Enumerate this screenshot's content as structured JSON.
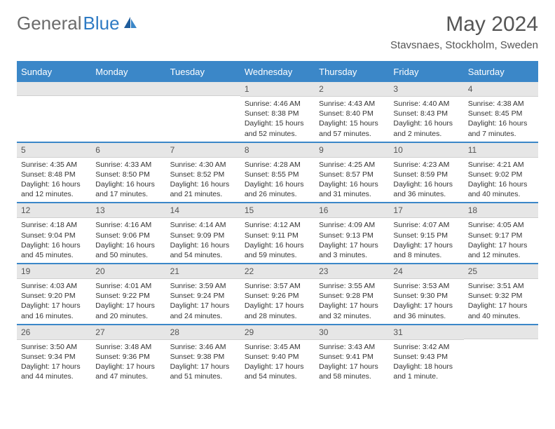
{
  "logo": {
    "part1": "General",
    "part2": "Blue"
  },
  "title": "May 2024",
  "location": "Stavsnaes, Stockholm, Sweden",
  "weekdays": [
    "Sunday",
    "Monday",
    "Tuesday",
    "Wednesday",
    "Thursday",
    "Friday",
    "Saturday"
  ],
  "colors": {
    "accent": "#3b87c8",
    "header_bg": "#e6e6e6"
  },
  "weeks": [
    [
      {
        "day": "",
        "sunrise": "",
        "sunset": "",
        "daylight": ""
      },
      {
        "day": "",
        "sunrise": "",
        "sunset": "",
        "daylight": ""
      },
      {
        "day": "",
        "sunrise": "",
        "sunset": "",
        "daylight": ""
      },
      {
        "day": "1",
        "sunrise": "Sunrise: 4:46 AM",
        "sunset": "Sunset: 8:38 PM",
        "daylight": "Daylight: 15 hours and 52 minutes."
      },
      {
        "day": "2",
        "sunrise": "Sunrise: 4:43 AM",
        "sunset": "Sunset: 8:40 PM",
        "daylight": "Daylight: 15 hours and 57 minutes."
      },
      {
        "day": "3",
        "sunrise": "Sunrise: 4:40 AM",
        "sunset": "Sunset: 8:43 PM",
        "daylight": "Daylight: 16 hours and 2 minutes."
      },
      {
        "day": "4",
        "sunrise": "Sunrise: 4:38 AM",
        "sunset": "Sunset: 8:45 PM",
        "daylight": "Daylight: 16 hours and 7 minutes."
      }
    ],
    [
      {
        "day": "5",
        "sunrise": "Sunrise: 4:35 AM",
        "sunset": "Sunset: 8:48 PM",
        "daylight": "Daylight: 16 hours and 12 minutes."
      },
      {
        "day": "6",
        "sunrise": "Sunrise: 4:33 AM",
        "sunset": "Sunset: 8:50 PM",
        "daylight": "Daylight: 16 hours and 17 minutes."
      },
      {
        "day": "7",
        "sunrise": "Sunrise: 4:30 AM",
        "sunset": "Sunset: 8:52 PM",
        "daylight": "Daylight: 16 hours and 21 minutes."
      },
      {
        "day": "8",
        "sunrise": "Sunrise: 4:28 AM",
        "sunset": "Sunset: 8:55 PM",
        "daylight": "Daylight: 16 hours and 26 minutes."
      },
      {
        "day": "9",
        "sunrise": "Sunrise: 4:25 AM",
        "sunset": "Sunset: 8:57 PM",
        "daylight": "Daylight: 16 hours and 31 minutes."
      },
      {
        "day": "10",
        "sunrise": "Sunrise: 4:23 AM",
        "sunset": "Sunset: 8:59 PM",
        "daylight": "Daylight: 16 hours and 36 minutes."
      },
      {
        "day": "11",
        "sunrise": "Sunrise: 4:21 AM",
        "sunset": "Sunset: 9:02 PM",
        "daylight": "Daylight: 16 hours and 40 minutes."
      }
    ],
    [
      {
        "day": "12",
        "sunrise": "Sunrise: 4:18 AM",
        "sunset": "Sunset: 9:04 PM",
        "daylight": "Daylight: 16 hours and 45 minutes."
      },
      {
        "day": "13",
        "sunrise": "Sunrise: 4:16 AM",
        "sunset": "Sunset: 9:06 PM",
        "daylight": "Daylight: 16 hours and 50 minutes."
      },
      {
        "day": "14",
        "sunrise": "Sunrise: 4:14 AM",
        "sunset": "Sunset: 9:09 PM",
        "daylight": "Daylight: 16 hours and 54 minutes."
      },
      {
        "day": "15",
        "sunrise": "Sunrise: 4:12 AM",
        "sunset": "Sunset: 9:11 PM",
        "daylight": "Daylight: 16 hours and 59 minutes."
      },
      {
        "day": "16",
        "sunrise": "Sunrise: 4:09 AM",
        "sunset": "Sunset: 9:13 PM",
        "daylight": "Daylight: 17 hours and 3 minutes."
      },
      {
        "day": "17",
        "sunrise": "Sunrise: 4:07 AM",
        "sunset": "Sunset: 9:15 PM",
        "daylight": "Daylight: 17 hours and 8 minutes."
      },
      {
        "day": "18",
        "sunrise": "Sunrise: 4:05 AM",
        "sunset": "Sunset: 9:17 PM",
        "daylight": "Daylight: 17 hours and 12 minutes."
      }
    ],
    [
      {
        "day": "19",
        "sunrise": "Sunrise: 4:03 AM",
        "sunset": "Sunset: 9:20 PM",
        "daylight": "Daylight: 17 hours and 16 minutes."
      },
      {
        "day": "20",
        "sunrise": "Sunrise: 4:01 AM",
        "sunset": "Sunset: 9:22 PM",
        "daylight": "Daylight: 17 hours and 20 minutes."
      },
      {
        "day": "21",
        "sunrise": "Sunrise: 3:59 AM",
        "sunset": "Sunset: 9:24 PM",
        "daylight": "Daylight: 17 hours and 24 minutes."
      },
      {
        "day": "22",
        "sunrise": "Sunrise: 3:57 AM",
        "sunset": "Sunset: 9:26 PM",
        "daylight": "Daylight: 17 hours and 28 minutes."
      },
      {
        "day": "23",
        "sunrise": "Sunrise: 3:55 AM",
        "sunset": "Sunset: 9:28 PM",
        "daylight": "Daylight: 17 hours and 32 minutes."
      },
      {
        "day": "24",
        "sunrise": "Sunrise: 3:53 AM",
        "sunset": "Sunset: 9:30 PM",
        "daylight": "Daylight: 17 hours and 36 minutes."
      },
      {
        "day": "25",
        "sunrise": "Sunrise: 3:51 AM",
        "sunset": "Sunset: 9:32 PM",
        "daylight": "Daylight: 17 hours and 40 minutes."
      }
    ],
    [
      {
        "day": "26",
        "sunrise": "Sunrise: 3:50 AM",
        "sunset": "Sunset: 9:34 PM",
        "daylight": "Daylight: 17 hours and 44 minutes."
      },
      {
        "day": "27",
        "sunrise": "Sunrise: 3:48 AM",
        "sunset": "Sunset: 9:36 PM",
        "daylight": "Daylight: 17 hours and 47 minutes."
      },
      {
        "day": "28",
        "sunrise": "Sunrise: 3:46 AM",
        "sunset": "Sunset: 9:38 PM",
        "daylight": "Daylight: 17 hours and 51 minutes."
      },
      {
        "day": "29",
        "sunrise": "Sunrise: 3:45 AM",
        "sunset": "Sunset: 9:40 PM",
        "daylight": "Daylight: 17 hours and 54 minutes."
      },
      {
        "day": "30",
        "sunrise": "Sunrise: 3:43 AM",
        "sunset": "Sunset: 9:41 PM",
        "daylight": "Daylight: 17 hours and 58 minutes."
      },
      {
        "day": "31",
        "sunrise": "Sunrise: 3:42 AM",
        "sunset": "Sunset: 9:43 PM",
        "daylight": "Daylight: 18 hours and 1 minute."
      },
      {
        "day": "",
        "sunrise": "",
        "sunset": "",
        "daylight": ""
      }
    ]
  ]
}
